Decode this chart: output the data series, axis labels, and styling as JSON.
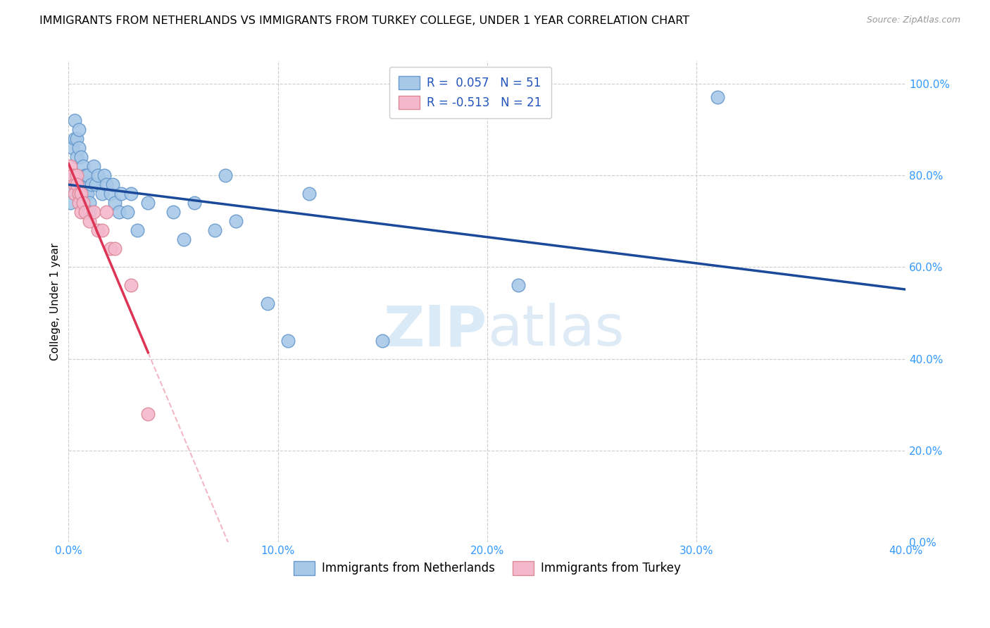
{
  "title": "IMMIGRANTS FROM NETHERLANDS VS IMMIGRANTS FROM TURKEY COLLEGE, UNDER 1 YEAR CORRELATION CHART",
  "source": "Source: ZipAtlas.com",
  "ylabel": "College, Under 1 year",
  "xlim": [
    0.0,
    0.4
  ],
  "ylim": [
    0.0,
    1.05
  ],
  "R_netherlands": 0.057,
  "N_netherlands": 51,
  "R_turkey": -0.513,
  "N_turkey": 21,
  "netherlands_color": "#a8c8e8",
  "turkey_color": "#f4b8cc",
  "netherlands_edge_color": "#6699cc",
  "turkey_edge_color": "#dd8899",
  "netherlands_line_color": "#1a4a99",
  "turkey_line_color": "#dd3355",
  "title_fontsize": 11.5,
  "source_fontsize": 9,
  "legend_fontsize": 12,
  "axis_label_fontsize": 11,
  "tick_fontsize": 11,
  "netherlands_x": [
    0.001,
    0.002,
    0.002,
    0.003,
    0.003,
    0.003,
    0.004,
    0.004,
    0.005,
    0.005,
    0.005,
    0.006,
    0.006,
    0.006,
    0.007,
    0.007,
    0.007,
    0.008,
    0.008,
    0.009,
    0.009,
    0.01,
    0.01,
    0.011,
    0.012,
    0.013,
    0.014,
    0.016,
    0.017,
    0.018,
    0.02,
    0.021,
    0.022,
    0.024,
    0.025,
    0.028,
    0.03,
    0.033,
    0.038,
    0.05,
    0.055,
    0.06,
    0.07,
    0.075,
    0.08,
    0.095,
    0.105,
    0.115,
    0.15,
    0.215,
    0.31
  ],
  "netherlands_y": [
    0.74,
    0.86,
    0.77,
    0.92,
    0.88,
    0.8,
    0.88,
    0.84,
    0.9,
    0.86,
    0.78,
    0.84,
    0.78,
    0.75,
    0.82,
    0.78,
    0.76,
    0.8,
    0.76,
    0.8,
    0.76,
    0.74,
    0.72,
    0.78,
    0.82,
    0.78,
    0.8,
    0.76,
    0.8,
    0.78,
    0.76,
    0.78,
    0.74,
    0.72,
    0.76,
    0.72,
    0.76,
    0.68,
    0.74,
    0.72,
    0.66,
    0.74,
    0.68,
    0.8,
    0.7,
    0.52,
    0.44,
    0.76,
    0.44,
    0.56,
    0.97
  ],
  "turkey_x": [
    0.001,
    0.002,
    0.003,
    0.003,
    0.004,
    0.004,
    0.005,
    0.005,
    0.006,
    0.006,
    0.007,
    0.008,
    0.01,
    0.012,
    0.014,
    0.016,
    0.018,
    0.02,
    0.022,
    0.03,
    0.038
  ],
  "turkey_y": [
    0.82,
    0.8,
    0.78,
    0.76,
    0.8,
    0.78,
    0.76,
    0.74,
    0.76,
    0.72,
    0.74,
    0.72,
    0.7,
    0.72,
    0.68,
    0.68,
    0.72,
    0.64,
    0.64,
    0.56,
    0.28
  ]
}
